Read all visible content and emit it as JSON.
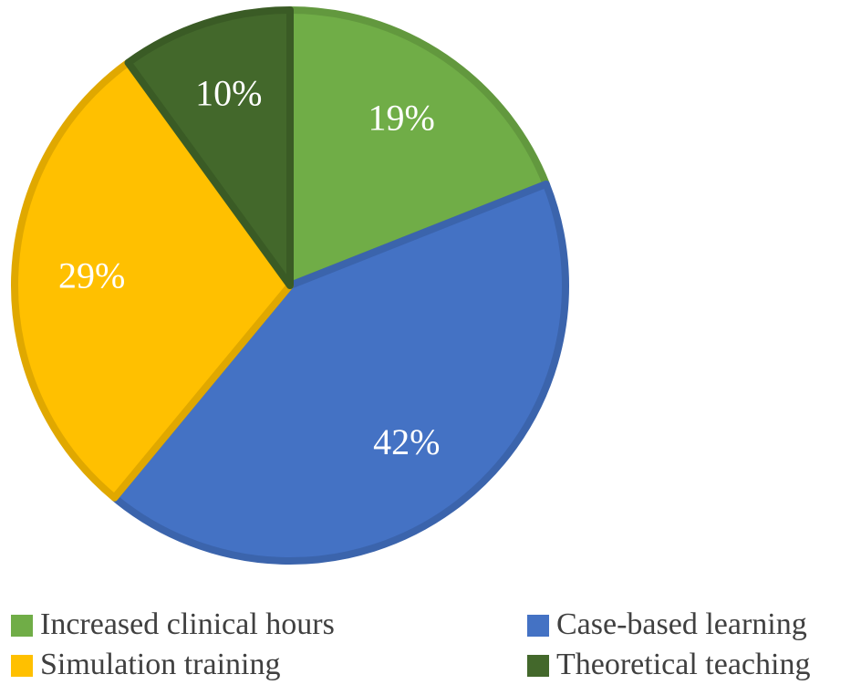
{
  "chart_data": {
    "type": "pie",
    "categories": [
      "Increased clinical hours",
      "Case-based learning",
      "Simulation training",
      "Theoretical teaching"
    ],
    "values": [
      19,
      42,
      29,
      10
    ],
    "value_labels": [
      "19%",
      "42%",
      "29%",
      "10%"
    ],
    "colors": [
      "#70ad47",
      "#4472c4",
      "#ffc000",
      "#43682b"
    ],
    "legend": "bottom"
  }
}
